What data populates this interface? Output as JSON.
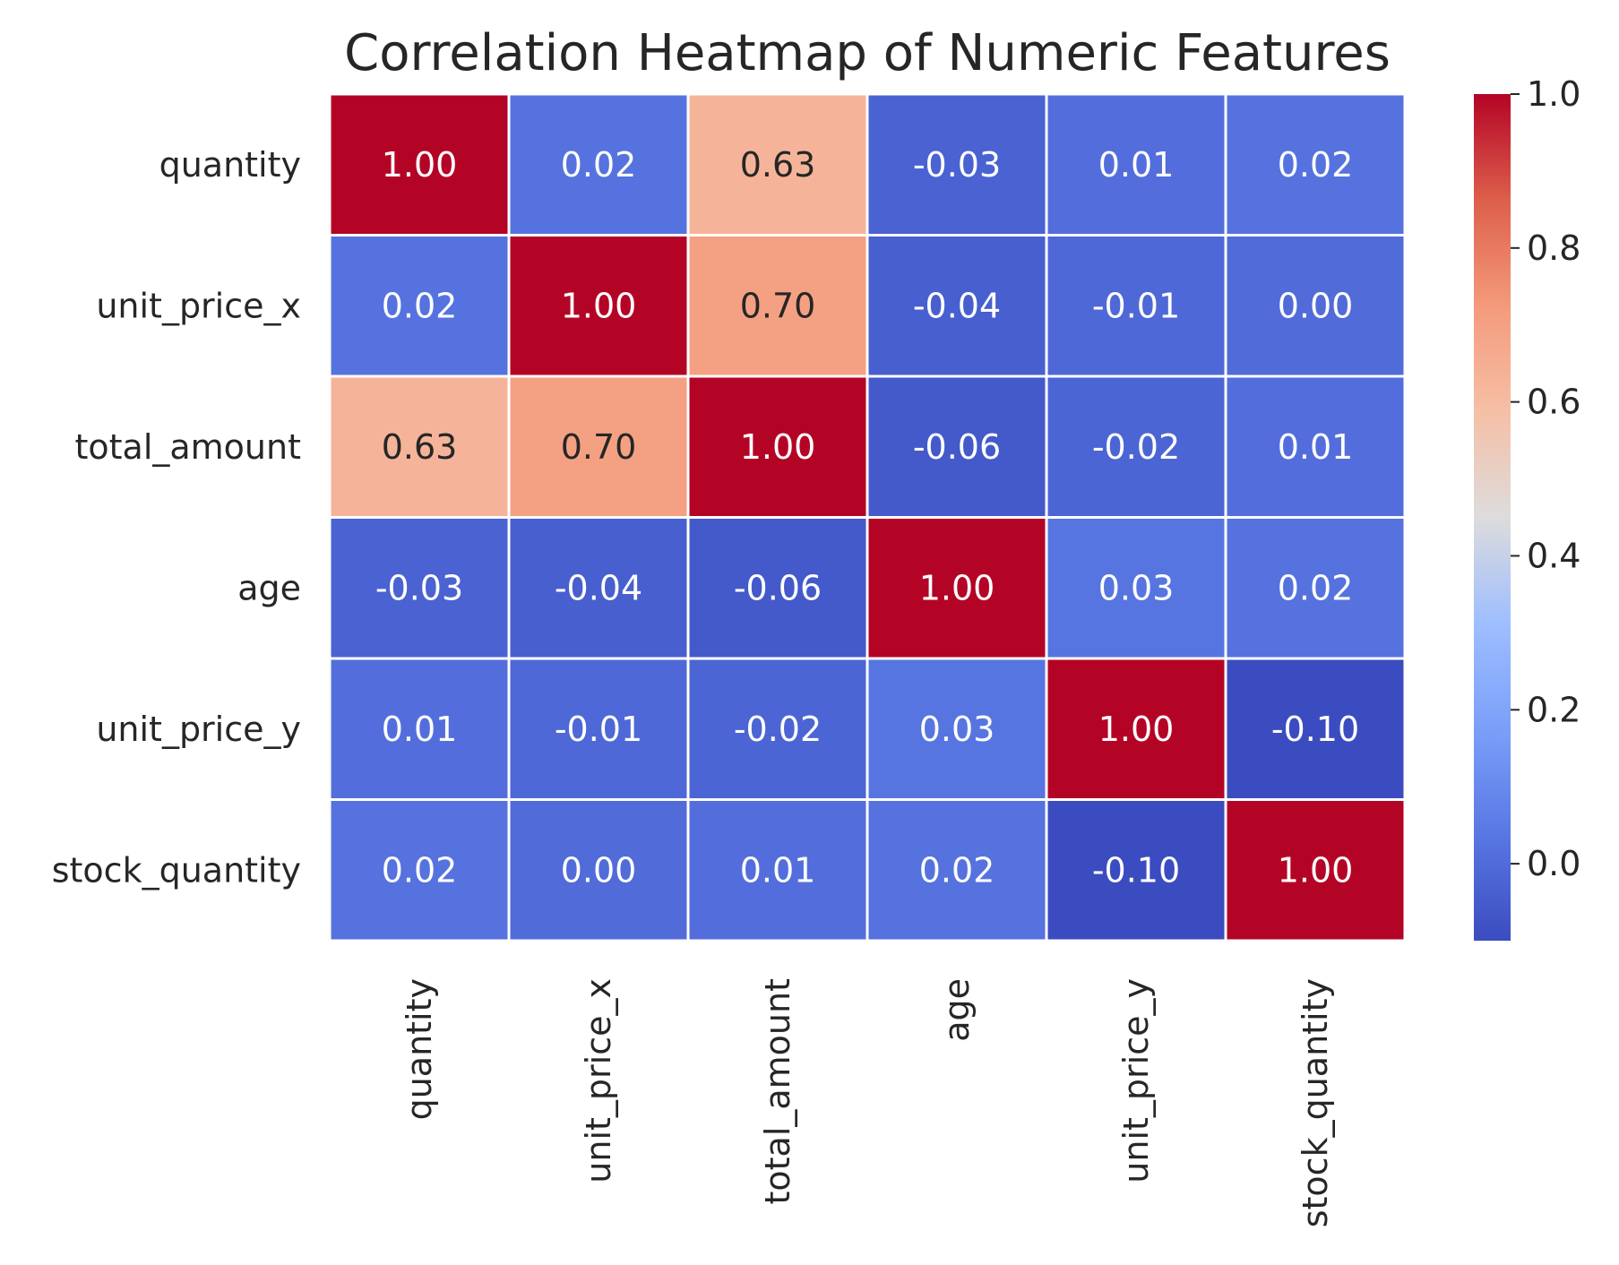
{
  "chart_data": {
    "type": "heatmap",
    "title": "Correlation Heatmap of Numeric Features",
    "xlabel": "",
    "ylabel": "",
    "row_labels": [
      "quantity",
      "unit_price_x",
      "total_amount",
      "age",
      "unit_price_y",
      "stock_quantity"
    ],
    "col_labels": [
      "quantity",
      "unit_price_x",
      "total_amount",
      "age",
      "unit_price_y",
      "stock_quantity"
    ],
    "values": [
      [
        1.0,
        0.02,
        0.63,
        -0.03,
        0.01,
        0.02
      ],
      [
        0.02,
        1.0,
        0.7,
        -0.04,
        -0.01,
        0.0
      ],
      [
        0.63,
        0.7,
        1.0,
        -0.06,
        -0.02,
        0.01
      ],
      [
        -0.03,
        -0.04,
        -0.06,
        1.0,
        0.03,
        0.02
      ],
      [
        0.01,
        -0.01,
        -0.02,
        0.03,
        1.0,
        -0.1
      ],
      [
        0.02,
        0.0,
        0.01,
        0.02,
        -0.1,
        1.0
      ]
    ],
    "value_format": "0.00",
    "colormap": "coolwarm",
    "color_range": [
      -0.1,
      1.0
    ],
    "colorbar": {
      "ticks": [
        0.0,
        0.2,
        0.4,
        0.6,
        0.8,
        1.0
      ],
      "tick_labels": [
        "0.0",
        "0.2",
        "0.4",
        "0.6",
        "0.8",
        "1.0"
      ],
      "placement": "right"
    },
    "grid_line_color": "#ffffff"
  }
}
